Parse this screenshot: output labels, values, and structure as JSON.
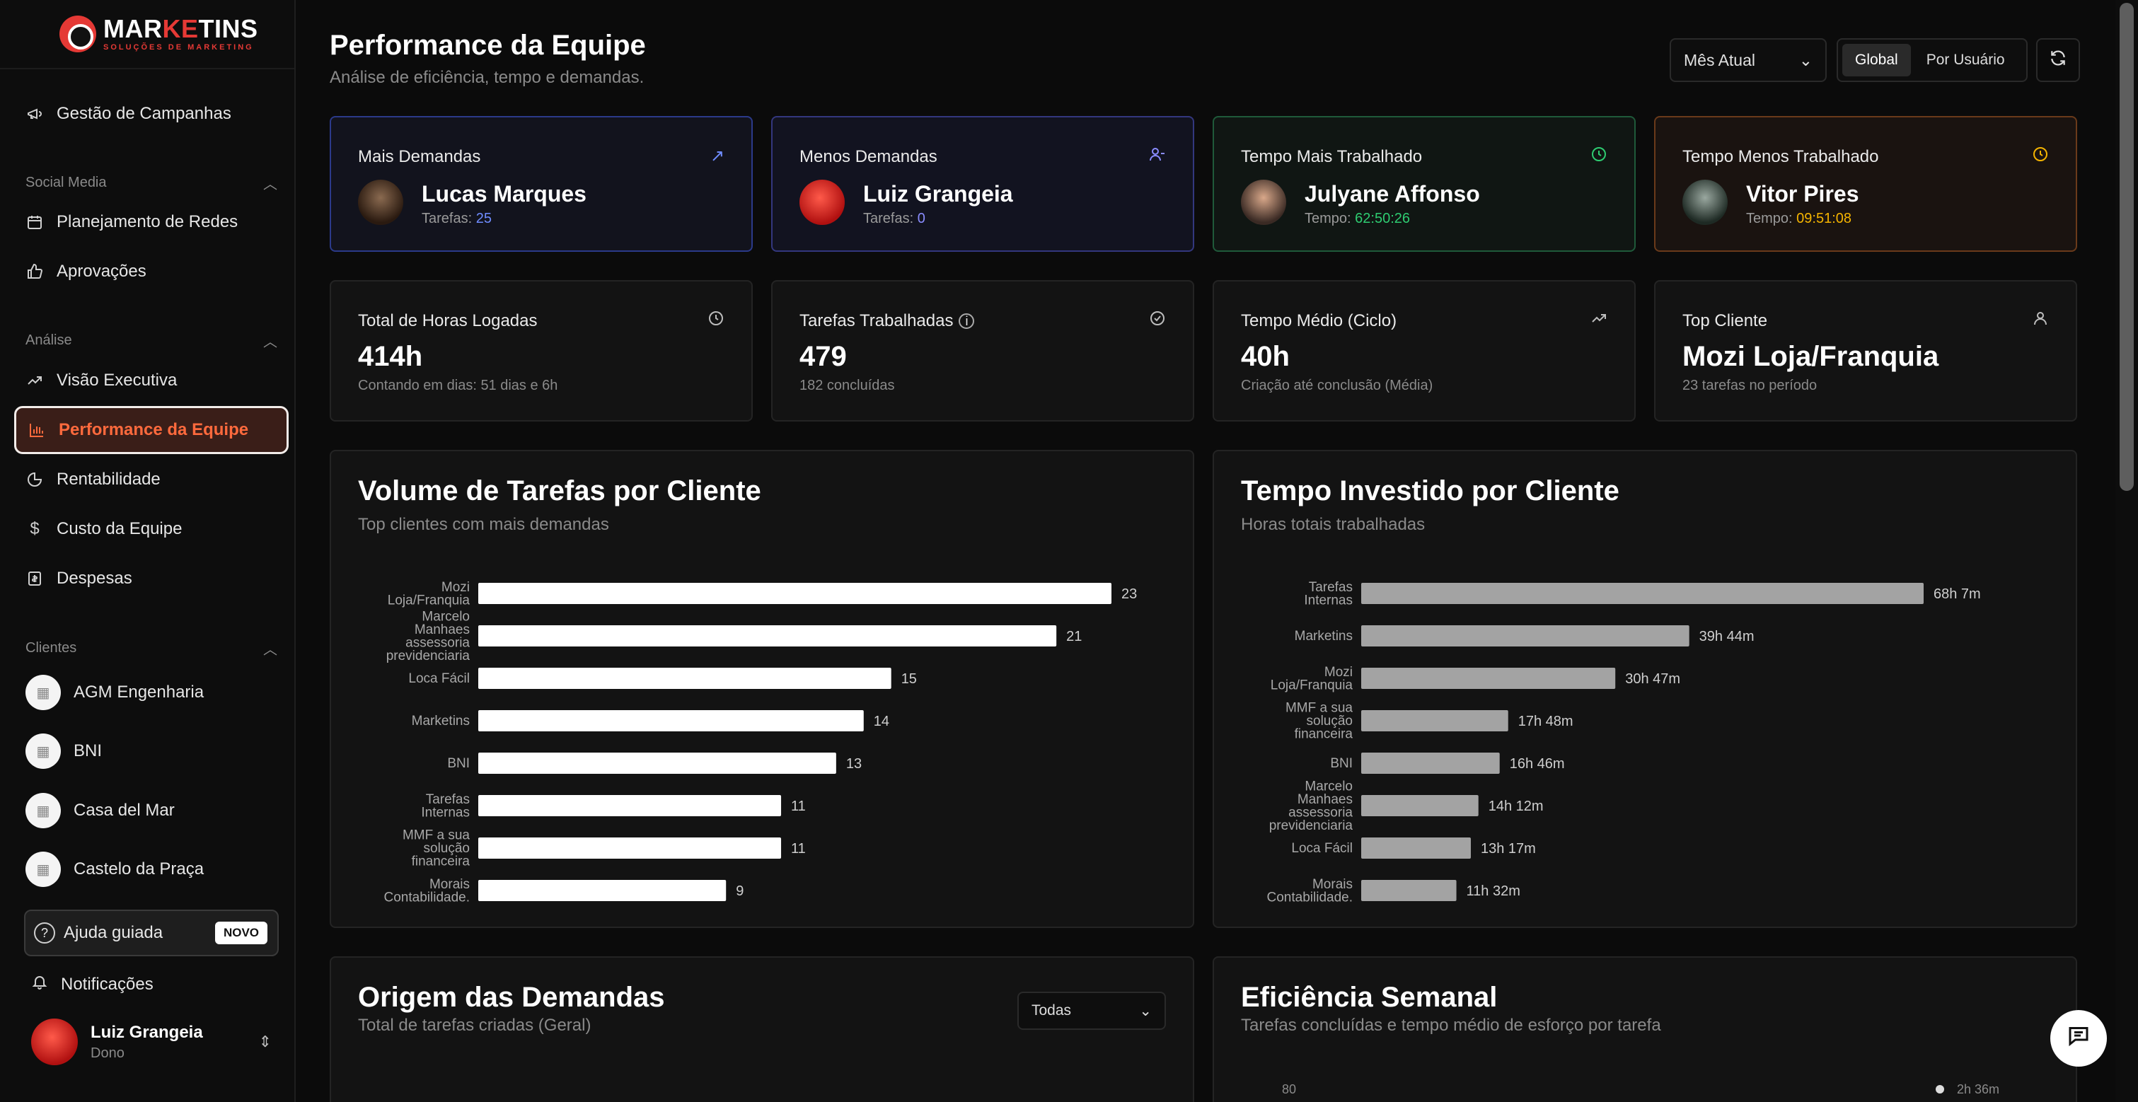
{
  "sidebar": {
    "logo": {
      "name_a": "MAR",
      "name_b": "KE",
      "name_c": "TINS",
      "sub": "SOLUÇÕES DE MARKETING"
    },
    "items": {
      "campanhas": "Gestão de Campanhas",
      "planejamento": "Planejamento de Redes",
      "aprovacoes": "Aprovações",
      "visao": "Visão Executiva",
      "performance": "Performance da Equipe",
      "rentabilidade": "Rentabilidade",
      "custo": "Custo da Equipe",
      "despesas": "Despesas"
    },
    "sections": {
      "social": "Social Media",
      "analise": "Análise",
      "clientes": "Clientes"
    },
    "clients": [
      "AGM Engenharia",
      "BNI",
      "Casa del Mar",
      "Castelo da Praça"
    ],
    "help": {
      "label": "Ajuda guiada",
      "badge": "NOVO"
    },
    "notifications": "Notificações",
    "user": {
      "name": "Luiz Grangeia",
      "role": "Dono"
    }
  },
  "header": {
    "title": "Performance da Equipe",
    "subtitle": "Análise de eficiência, tempo e demandas.",
    "period": "Mês Atual",
    "seg_global": "Global",
    "seg_user": "Por Usuário"
  },
  "highlights": [
    {
      "title": "Mais Demandas",
      "name": "Lucas Marques",
      "meta_label": "Tarefas: ",
      "meta_value": "25",
      "accent": "#6f8cff"
    },
    {
      "title": "Menos Demandas",
      "name": "Luiz Grangeia",
      "meta_label": "Tarefas: ",
      "meta_value": "0",
      "accent": "#8a8cff"
    },
    {
      "title": "Tempo Mais Trabalhado",
      "name": "Julyane Affonso",
      "meta_label": "Tempo: ",
      "meta_value": "62:50:26",
      "accent": "#2ecc71"
    },
    {
      "title": "Tempo Menos Trabalhado",
      "name": "Vitor Pires",
      "meta_label": "Tempo: ",
      "meta_value": "09:51:08",
      "accent": "#f5b400"
    }
  ],
  "stats": [
    {
      "title": "Total de Horas Logadas",
      "value": "414h",
      "sub": "Contando em dias: 51 dias e 6h"
    },
    {
      "title": "Tarefas Trabalhadas",
      "value": "479",
      "sub": "182 concluídas"
    },
    {
      "title": "Tempo Médio (Ciclo)",
      "value": "40h",
      "sub": "Criação até conclusão (Média)"
    },
    {
      "title": "Top Cliente",
      "value": "Mozi Loja/Franquia",
      "sub": "23 tarefas no período"
    }
  ],
  "charts": {
    "volume": {
      "title": "Volume de Tarefas por Cliente",
      "subtitle": "Top clientes com mais demandas"
    },
    "tempo": {
      "title": "Tempo Investido por Cliente",
      "subtitle": "Horas totais trabalhadas"
    }
  },
  "chart_data": [
    {
      "type": "bar",
      "orientation": "horizontal",
      "title": "Volume de Tarefas por Cliente",
      "subtitle": "Top clientes com mais demandas",
      "categories": [
        [
          "Mozi",
          "Loja/Franquia"
        ],
        [
          "Marcelo",
          "Manhaes",
          "assessoria",
          "previdenciaria"
        ],
        [
          "Loca Fácil"
        ],
        [
          "Marketins"
        ],
        [
          "BNI"
        ],
        [
          "Tarefas",
          "Internas"
        ],
        [
          "MMF a sua",
          "solução",
          "financeira"
        ],
        [
          "Morais",
          "Contabilidade."
        ]
      ],
      "values": [
        23,
        21,
        15,
        14,
        13,
        11,
        11,
        9
      ],
      "labels": [
        "23",
        "21",
        "15",
        "14",
        "13",
        "11",
        "11",
        "9"
      ],
      "color": "#ffffff"
    },
    {
      "type": "bar",
      "orientation": "horizontal",
      "title": "Tempo Investido por Cliente",
      "subtitle": "Horas totais trabalhadas",
      "categories": [
        [
          "Tarefas",
          "Internas"
        ],
        [
          "Marketins"
        ],
        [
          "Mozi",
          "Loja/Franquia"
        ],
        [
          "MMF a sua",
          "solução",
          "financeira"
        ],
        [
          "BNI"
        ],
        [
          "Marcelo",
          "Manhaes",
          "assessoria",
          "previdenciaria"
        ],
        [
          "Loca Fácil"
        ],
        [
          "Morais",
          "Contabilidade."
        ]
      ],
      "values": [
        68.12,
        39.73,
        30.78,
        17.8,
        16.77,
        14.2,
        13.28,
        11.53
      ],
      "labels": [
        "68h 7m",
        "39h 44m",
        "30h 47m",
        "17h 48m",
        "16h 46m",
        "14h 12m",
        "13h 17m",
        "11h 32m"
      ],
      "color": "#a3a3a3"
    }
  ],
  "bottom": {
    "origem": {
      "title": "Origem das Demandas",
      "subtitle": "Total de tarefas criadas (Geral)",
      "filter": "Todas"
    },
    "eficiencia": {
      "title": "Eficiência Semanal",
      "subtitle": "Tarefas concluídas e tempo médio de esforço por tarefa",
      "y_tick": "80",
      "point_label": "2h 36m"
    }
  }
}
